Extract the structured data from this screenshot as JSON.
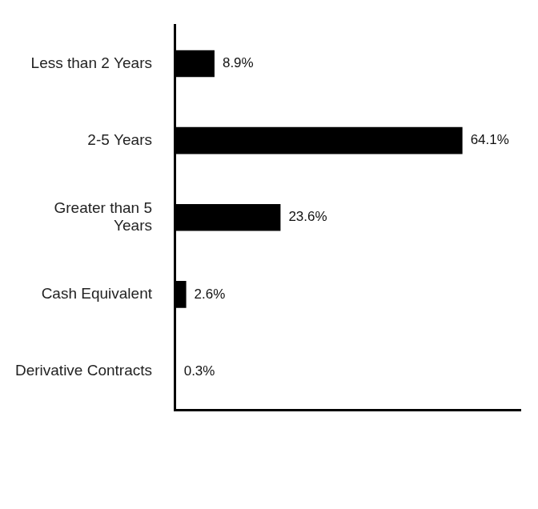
{
  "chart_data": {
    "type": "bar",
    "orientation": "horizontal",
    "categories": [
      "Less than 2 Years",
      "2-5 Years",
      "Greater than 5 Years",
      "Cash Equivalent",
      "Derivative Contracts"
    ],
    "values": [
      8.9,
      64.1,
      23.6,
      2.6,
      0.3
    ],
    "value_labels": [
      "8.9%",
      "64.1%",
      "23.6%",
      "2.6%",
      "0.3%"
    ],
    "color": "#000000",
    "xlim": [
      0,
      77
    ],
    "grid": false,
    "data_labels": true,
    "tick_labels": "y"
  }
}
